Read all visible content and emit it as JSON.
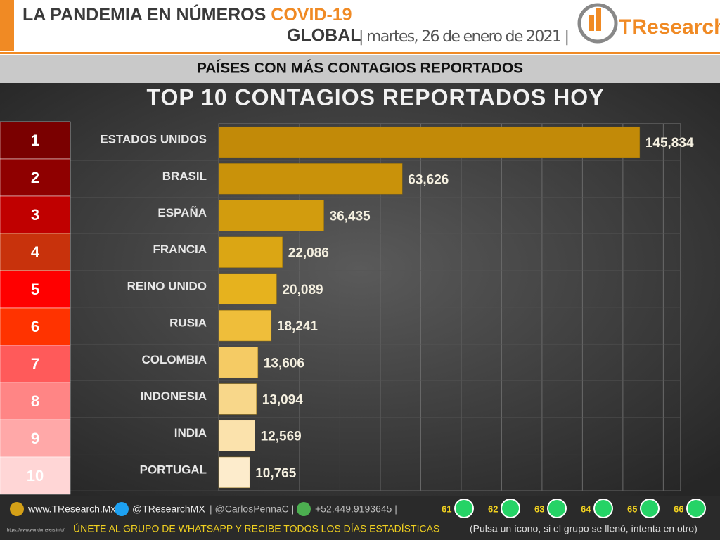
{
  "header": {
    "title": "LA PANDEMIA EN NÚMEROS",
    "highlight": "COVID-19",
    "scope": "GLOBAL",
    "date": "| martes, 26 de enero de 2021 |",
    "brand": "TResearch"
  },
  "subtitle": "PAÍSES CON MÁS CONTAGIOS REPORTADOS",
  "chart_data": {
    "type": "bar",
    "orientation": "horizontal",
    "title": "TOP 10 CONTAGIOS REPORTADOS HOY",
    "categories": [
      "ESTADOS UNIDOS",
      "BRASIL",
      "ESPAÑA",
      "FRANCIA",
      "REINO UNIDO",
      "RUSIA",
      "COLOMBIA",
      "INDONESIA",
      "INDIA",
      "PORTUGAL"
    ],
    "values": [
      145834,
      63626,
      36435,
      22086,
      20089,
      18241,
      13606,
      13094,
      12569,
      10765
    ],
    "value_labels": [
      "145,834",
      "63,626",
      "36,435",
      "22,086",
      "20,089",
      "18,241",
      "13,606",
      "13,094",
      "12,569",
      "10,765"
    ],
    "colors": [
      "#c28a08",
      "#c9920a",
      "#d29c0e",
      "#dba614",
      "#e6b21e",
      "#efbe3a",
      "#f5cb64",
      "#f8d78a",
      "#fbe2ac",
      "#fdeccc"
    ],
    "ranks": [
      1,
      2,
      3,
      4,
      5,
      6,
      7,
      8,
      9,
      10
    ],
    "rank_colors": [
      "#7a0000",
      "#8f0000",
      "#c00000",
      "#c8320c",
      "#ff0000",
      "#ff3300",
      "#ff5a5a",
      "#ff8585",
      "#ffa8a8",
      "#ffd6d6"
    ],
    "xlim": [
      0,
      160000
    ],
    "xticks": [
      0,
      14000,
      28000,
      42000,
      56000,
      70000,
      84000,
      98000,
      112000,
      126000,
      140000,
      154000
    ],
    "grid": true
  },
  "footer": {
    "site": "www.TResearch.Mx",
    "twitter": "@TResearchMX",
    "twitter2": "| @CarlosPennaC |",
    "phone": "+52.449.9193645 |",
    "groups": [
      "61",
      "62",
      "63",
      "64",
      "65",
      "66"
    ],
    "cta": "ÚNETE AL GRUPO DE WHATSAPP Y RECIBE TODOS LOS DÍAS ESTADÍSTICAS",
    "hint": "(Pulsa un ícono, si el grupo se llenó, intenta en otro)",
    "source": "https://www.worldometers.info/"
  }
}
